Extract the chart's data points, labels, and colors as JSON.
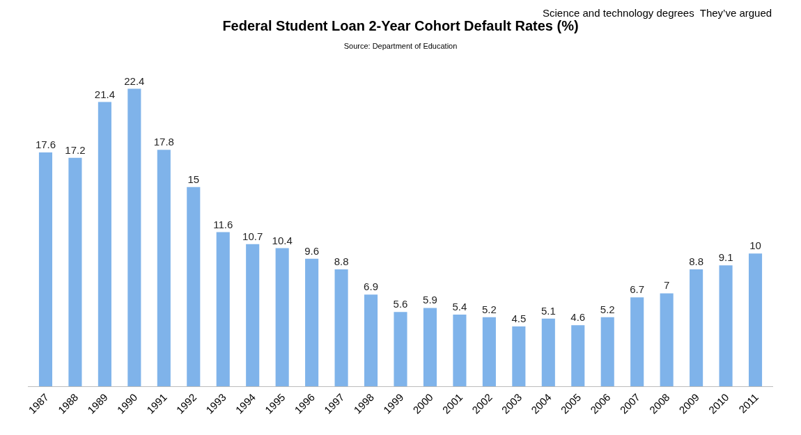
{
  "chart_data": {
    "type": "bar",
    "title": "Federal Student Loan 2-Year Cohort Default Rates (%)",
    "subtitle": "Source: Department of Education",
    "annotations": [
      "Science and technology degrees  They’ve argued"
    ],
    "categories": [
      "1987",
      "1988",
      "1989",
      "1990",
      "1991",
      "1992",
      "1993",
      "1994",
      "1995",
      "1996",
      "1997",
      "1998",
      "1999",
      "2000",
      "2001",
      "2002",
      "2003",
      "2004",
      "2005",
      "2006",
      "2007",
      "2008",
      "2009",
      "2010",
      "2011"
    ],
    "values": [
      17.6,
      17.2,
      21.4,
      22.4,
      17.8,
      15,
      11.6,
      10.7,
      10.4,
      9.6,
      8.8,
      6.9,
      5.6,
      5.9,
      5.4,
      5.2,
      4.5,
      5.1,
      4.6,
      5.2,
      6.7,
      7,
      8.8,
      9.1,
      10
    ],
    "color": "#7fb3ea",
    "data_labels": true,
    "legend": false
  }
}
